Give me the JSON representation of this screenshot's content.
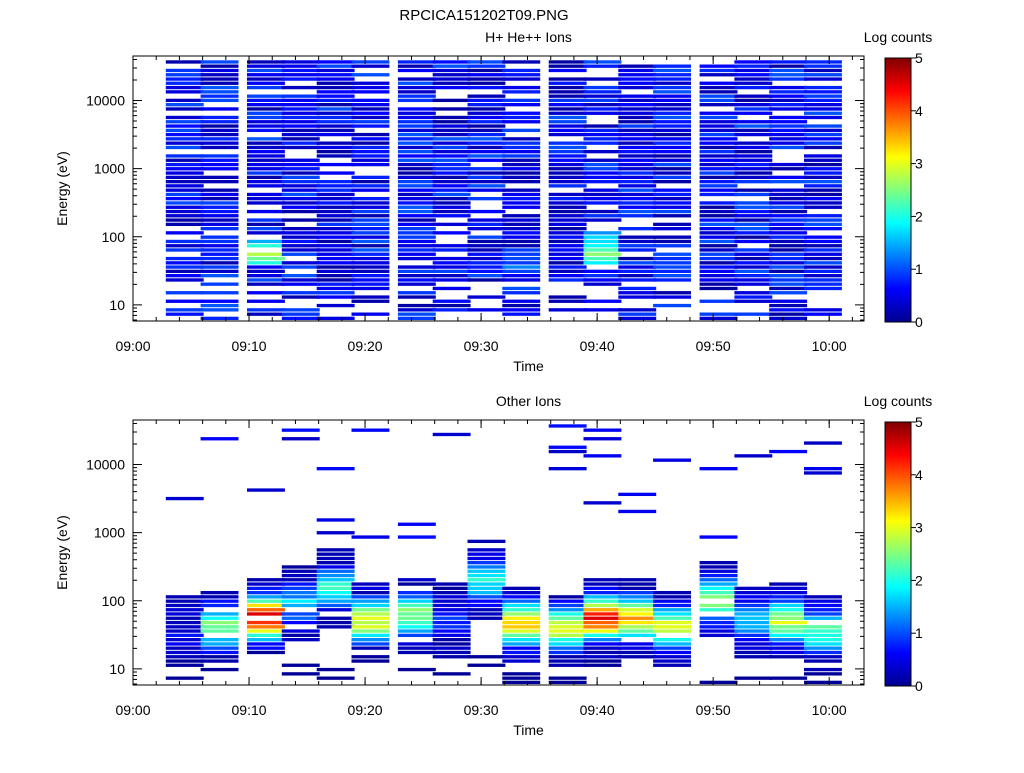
{
  "figure_title": "RPCICA151202T09.PNG",
  "chart_data": [
    {
      "type": "heatmap",
      "title": "H+ He++ Ions",
      "xlabel": "Time",
      "ylabel": "Energy (eV)",
      "x_ticks": [
        "09:00",
        "09:10",
        "09:20",
        "09:30",
        "09:40",
        "09:50",
        "10:00"
      ],
      "xlim": [
        "09:00",
        "10:03"
      ],
      "y_scale": "log",
      "y_ticks": [
        "10",
        "100",
        "1000",
        "10000"
      ],
      "ylim": [
        5.8,
        45000
      ],
      "colorbar": {
        "label": "Log counts",
        "ticks": [
          "0",
          "1",
          "2",
          "3",
          "4",
          "5"
        ],
        "range": [
          0,
          5
        ]
      },
      "time_columns": [
        "09:03",
        "09:06",
        "09:10",
        "09:13",
        "09:16",
        "09:19",
        "09:23",
        "09:26",
        "09:29",
        "09:32",
        "09:36",
        "09:39",
        "09:42",
        "09:45",
        "09:49",
        "09:52",
        "09:55",
        "09:58"
      ],
      "hotspots": [
        {
          "time": "09:10",
          "energy_ev": 55,
          "log_counts": 2.8
        },
        {
          "time": "09:10",
          "energy_ev": 80,
          "log_counts": 1.6
        },
        {
          "time": "09:39",
          "energy_ev": 55,
          "log_counts": 2.6
        },
        {
          "time": "09:39",
          "energy_ev": 90,
          "log_counts": 1.9
        },
        {
          "time": "09:32",
          "energy_ev": 35,
          "log_counts": 1.3
        }
      ],
      "background_log_counts": [
        0.1,
        1.0
      ]
    },
    {
      "type": "heatmap",
      "title": "Other Ions",
      "xlabel": "Time",
      "ylabel": "Energy (eV)",
      "x_ticks": [
        "09:00",
        "09:10",
        "09:20",
        "09:30",
        "09:40",
        "09:50",
        "10:00"
      ],
      "xlim": [
        "09:00",
        "10:03"
      ],
      "y_scale": "log",
      "y_ticks": [
        "10",
        "100",
        "1000",
        "10000"
      ],
      "ylim": [
        5.8,
        45000
      ],
      "colorbar": {
        "label": "Log counts",
        "ticks": [
          "0",
          "1",
          "2",
          "3",
          "4",
          "5"
        ],
        "range": [
          0,
          5
        ]
      },
      "time_columns": [
        "09:03",
        "09:06",
        "09:10",
        "09:13",
        "09:16",
        "09:19",
        "09:23",
        "09:26",
        "09:29",
        "09:32",
        "09:36",
        "09:39",
        "09:42",
        "09:45",
        "09:49",
        "09:52",
        "09:55",
        "09:58"
      ],
      "peaks": [
        {
          "time": "09:03",
          "energy_ev": 35,
          "log_counts": 0.5
        },
        {
          "time": "09:06",
          "energy_ev": 40,
          "log_counts": 2.5
        },
        {
          "time": "09:10",
          "energy_ev": 55,
          "log_counts": 4.5
        },
        {
          "time": "09:13",
          "energy_ev": 90,
          "log_counts": 1.6
        },
        {
          "time": "09:16",
          "energy_ev": 150,
          "log_counts": 2.0
        },
        {
          "time": "09:19",
          "energy_ev": 50,
          "log_counts": 3.0
        },
        {
          "time": "09:23",
          "energy_ev": 60,
          "log_counts": 2.6
        },
        {
          "time": "09:26",
          "energy_ev": 50,
          "log_counts": 0.8
        },
        {
          "time": "09:29",
          "energy_ev": 200,
          "log_counts": 2.0
        },
        {
          "time": "09:32",
          "energy_ev": 45,
          "log_counts": 3.5
        },
        {
          "time": "09:36",
          "energy_ev": 40,
          "log_counts": 3.0
        },
        {
          "time": "09:39",
          "energy_ev": 55,
          "log_counts": 4.3
        },
        {
          "time": "09:42",
          "energy_ev": 55,
          "log_counts": 3.5
        },
        {
          "time": "09:45",
          "energy_ev": 40,
          "log_counts": 3.0
        },
        {
          "time": "09:49",
          "energy_ev": 100,
          "log_counts": 2.8
        },
        {
          "time": "09:52",
          "energy_ev": 50,
          "log_counts": 1.7
        },
        {
          "time": "09:55",
          "energy_ev": 50,
          "log_counts": 2.8
        },
        {
          "time": "09:58",
          "energy_ev": 35,
          "log_counts": 2.3
        }
      ]
    }
  ]
}
